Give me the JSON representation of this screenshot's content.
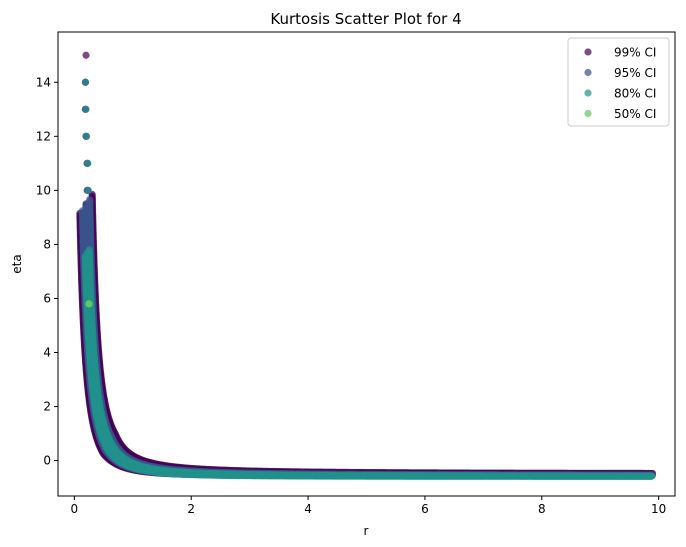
{
  "chart_data": {
    "type": "scatter",
    "title": "Kurtosis Scatter Plot for 4",
    "xlabel": "r",
    "ylabel": "eta",
    "xlim": [
      -0.28,
      10.28
    ],
    "ylim": [
      -1.31,
      15.86
    ],
    "xticks": [
      0,
      2,
      4,
      6,
      8,
      10
    ],
    "yticks": [
      0,
      2,
      4,
      6,
      8,
      10,
      12,
      14
    ],
    "grid": false,
    "legend_position": "top-right",
    "curve_model": "eta = a / r^2 + c",
    "series": [
      {
        "name": "99% CI",
        "color": "#440154",
        "opacity": 0.7,
        "a": 0.4,
        "c": -0.5,
        "r_min": 0.2,
        "r_max": 9.9,
        "band": [
          0.15,
          0.55
        ],
        "extra_points": [
          {
            "x": 0.2,
            "y": 15
          },
          {
            "x": 0.19,
            "y": 14
          },
          {
            "x": 0.19,
            "y": 13
          },
          {
            "x": 0.2,
            "y": 12
          },
          {
            "x": 0.22,
            "y": 11
          },
          {
            "x": 0.22,
            "y": 10
          }
        ]
      },
      {
        "name": "95% CI",
        "color": "#3b528b",
        "opacity": 0.7,
        "a": 0.4,
        "c": -0.55,
        "r_min": 0.2,
        "r_max": 9.9,
        "band": [
          0.12,
          0.3
        ],
        "extra_points": [
          {
            "x": 0.19,
            "y": 14
          },
          {
            "x": 0.19,
            "y": 13
          },
          {
            "x": 0.2,
            "y": 12
          },
          {
            "x": 0.22,
            "y": 11
          },
          {
            "x": 0.23,
            "y": 10
          }
        ]
      },
      {
        "name": "80% CI",
        "color": "#21918c",
        "opacity": 0.7,
        "a": 0.4,
        "c": -0.58,
        "r_min": 0.22,
        "r_max": 9.9,
        "band": [
          0.08,
          0.15
        ],
        "extra_points": [
          {
            "x": 0.19,
            "y": 14
          },
          {
            "x": 0.2,
            "y": 13
          },
          {
            "x": 0.21,
            "y": 12
          },
          {
            "x": 0.23,
            "y": 11
          },
          {
            "x": 0.24,
            "y": 10
          }
        ]
      },
      {
        "name": "50% CI",
        "color": "#5ec962",
        "opacity": 0.7,
        "a": 0.4,
        "c": -0.6,
        "r_min": 0.25,
        "r_max": 0.25,
        "band": [
          0,
          0
        ],
        "extra_points": []
      }
    ]
  }
}
